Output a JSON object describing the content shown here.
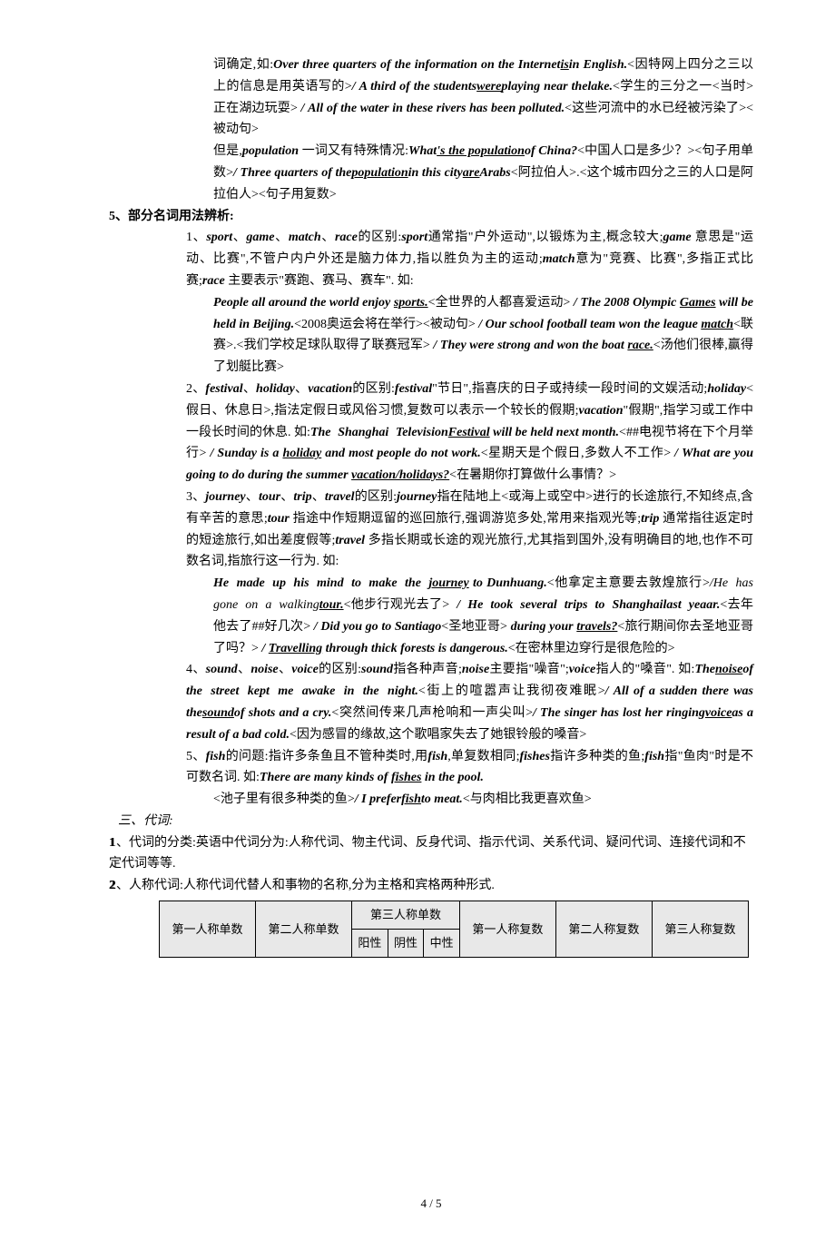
{
  "p1": {
    "t1": "词确定,如:",
    "ex1": "Over three quarters of the information on the Internet",
    "ex1u": "is",
    "ex1b": "in English.",
    "ex1c": "<因特网上四分之三以上的信息是用英语写的>",
    "ex2a": "/ A third of the students",
    "ex2u": "were",
    "ex2b": "playing near thelake.",
    "ex2c": "<学生的三分之一<当时>正在湖边玩耍>",
    "ex3a": " / All of the water in these rivers has been polluted.",
    "ex3c": "<这些河流中的水已经被污染了><被动句>",
    "t2a": "但是,",
    "t2b": "population",
    "t2c": "一词又有特殊情况:",
    "ex4a": "What",
    "ex4u": "'s the population",
    "ex4b": "of China?",
    "ex4c": "<中国人口是多少？><句子用单数>",
    "ex5a": "/ Three quarters of the",
    "ex5u": "population",
    "ex5b": "in this city",
    "ex5u2": "are",
    "ex5c": "Arabs",
    "ex5d": "<阿拉伯人>.<这个城市四分之三的人口是阿拉伯人><句子用复数>"
  },
  "s5": {
    "title": "5、部分名词用法辨析:",
    "i1": {
      "lead": "1、",
      "w1": "sport",
      "w2": "game",
      "w3": "match",
      "w4": "race",
      "t1": "的区别:",
      "e1": "sport",
      "e1t": "通常指\"户外运动\",以锻炼为主,概念较大;",
      "e2": "game",
      "e2t": " 意思是\"运动、比赛\",不管户内户外还是脑力体力,指以胜负为主的运动;",
      "e3": "match",
      "e3t": "意为\"竞赛、比赛\",多指正式比赛;",
      "e4": "race",
      "e4t": " 主要表示\"赛跑、赛马、赛车\". 如:",
      "x1a": "People all around the world enjoy ",
      "x1u": "sports.",
      "x1c": "<全世界的人都喜爱运动>",
      "x2a": " / The 2008 Olympic ",
      "x2u": "Games",
      "x2b": " will be held in Beijing.",
      "x2c": "<2008奥运会将在举行><被动句>",
      "x3a": " / Our school football team won the league ",
      "x3u": "match",
      "x3c": "<联赛>.<我们学校足球队取得了联赛冠军>",
      "x4a": " / They were strong and won the boat ",
      "x4u": "race.",
      "x4c": "<汤他们很棒,赢得了划艇比赛>"
    },
    "i2": {
      "lead": "2、",
      "w1": "festival",
      "w2": "holiday",
      "w3": "vacation",
      "t1": "的区别:",
      "e1": "festival",
      "e1t": "\"节日\",指喜庆的日子或持续一段时间的文娱活动;",
      "e2": "holiday",
      "e2t": "<假日、休息日>,指法定假日或风俗习惯,复数可以表示一个较长的假期;",
      "e3": "vacation",
      "e3t": "\"假期\",指学习或工作中一段长时间的休息. 如:",
      "x1a": "The Shanghai Television",
      "x1u": "Festival",
      "x1b": " will be held next month.",
      "x1c": "<##电视节将在下个月举行>",
      "x2a": " / Sunday is a ",
      "x2u": "holiday",
      "x2b": " and most people do not work.",
      "x2c": "<星期天是个假日,多数人不工作>",
      "x3a": " / What are you going to do during the summer ",
      "x3u": "vacation/holidays?",
      "x3c": "<在暑期你打算做什么事情？>"
    },
    "i3": {
      "lead": "3、",
      "w1": "journey",
      "w2": "tour",
      "w3": "trip",
      "w4": "travel",
      "t1": "的区别:",
      "e1": "journey",
      "e1t": "指在陆地上<或海上或空中>进行的长途旅行,不知终点,含有辛苦的意思;",
      "e2": "tour",
      "e2t": " 指途中作短期逗留的巡回旅行,强调游览多处,常用来指观光等;",
      "e3": "trip",
      "e3t": " 通常指往返定时的短途旅行,如出差度假等;",
      "e4": "travel",
      "e4t": " 多指长期或长途的观光旅行,尤其指到国外,没有明确目的地,也作不可数名词,指旅行这一行为. 如:",
      "x1a": "He made up his mind to make the ",
      "x1u": "journey",
      "x1b": " to Dunhuang.",
      "x1c": "<他拿定主意要去敦煌旅行>",
      "x2a": "/He has gone on a walking",
      "x2u": "tour.",
      "x2c": "<他步行观光去了>",
      "x3a": " / He took several trips to Shanghailast yeaar.",
      "x3c": "<去年他去了##好几次>",
      "x4a": " / Did you go to Santiago",
      "x4c": "<圣地亚哥>",
      "x4b": " during your ",
      "x4u": "travels?",
      "x4d": "<旅行期间你去圣地亚哥了吗？>",
      "x5a": " / ",
      "x5u": "Travelling",
      "x5b": " through thick forests is dangerous.",
      "x5c": "<在密林里边穿行是很危险的>"
    },
    "i4": {
      "lead": "4、",
      "w1": "sound",
      "w2": "noise",
      "w3": "voice",
      "t1": "的区别:",
      "e1": "sound",
      "e1t": "指各种声音;",
      "e2": "noise",
      "e2t": "主要指\"噪音\";",
      "e3": "voice",
      "e3t": "指人的\"嗓音\". 如:",
      "x1a": "The",
      "x1u": "noise",
      "x1b": "of the street kept me awake in the night.",
      "x1c": "<街上的喧嚣声让我彻夜难眠>",
      "x2a": "/ All of a sudden there was the",
      "x2u": "sound",
      "x2b": "of shots and a cry.",
      "x2c": "<突然间传来几声枪响和一声尖叫>",
      "x3a": "/ The singer has lost her ringing",
      "x3u": "voice",
      "x3b": "as a result of a bad cold.",
      "x3c": "<因为感冒的缘故,这个歌唱家失去了她银铃般的嗓音>"
    },
    "i5": {
      "lead": "5、",
      "w1": "fish",
      "t1": "的问题:指许多条鱼且不管种类时,用",
      "e1": "fish",
      "e1t": ",单复数相同;",
      "e2": "fishes",
      "e2t": "指许多种类的鱼;",
      "e3": "fish",
      "e3t": "指\"鱼肉\"时是不可数名词. 如:",
      "x1a": "There are many kinds of ",
      "x1u": "fishes",
      "x1b": " in the pool.",
      "x1c": "<池子里有很多种类的鱼>",
      "x2a": "/ I prefer",
      "x2u": "fish",
      "x2b": "to meat.",
      "x2c": "<与肉相比我更喜欢鱼>"
    }
  },
  "sec3": {
    "title": "三、代词:",
    "l1": "1、代词的分类:英语中代词分为:人称代词、物主代词、反身代词、指示代词、关系代词、疑问代词、连接代词和不定代词等等.",
    "l2": "2、人称代词:人称代词代替人和事物的名称,分为主格和宾格两种形式."
  },
  "table": {
    "c1": "第一人称单数",
    "c2": "第二人称单数",
    "h3": "第三人称单数",
    "c3a": "阳性",
    "c3b": "阴性",
    "c3c": "中性",
    "c4": "第一人称复数",
    "c5": "第二人称复数",
    "c6": "第三人称复数"
  },
  "footer": "4 / 5"
}
